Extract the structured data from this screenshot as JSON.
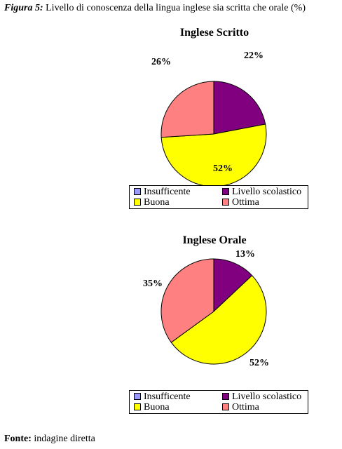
{
  "caption": {
    "label": "Figura 5:",
    "text": "Livello di conoscenza della lingua inglese sia scritta che orale (%)"
  },
  "colors": {
    "Insufficente": "#9999ff",
    "Livello scolastico": "#800080",
    "Buona": "#ffff00",
    "Ottima": "#ff8080"
  },
  "chart_data": [
    {
      "type": "pie",
      "title": "Inglese Scritto",
      "categories": [
        "Insufficente",
        "Livello scolastico",
        "Buona",
        "Ottima"
      ],
      "values": [
        0,
        22,
        52,
        26
      ],
      "labels": [
        "",
        "22%",
        "52%",
        "26%"
      ],
      "legend": [
        "Insufficente",
        "Livello scolastico",
        "Buona",
        "Ottima"
      ]
    },
    {
      "type": "pie",
      "title": "Inglese Orale",
      "categories": [
        "Insufficente",
        "Livello scolastico",
        "Buona",
        "Ottima"
      ],
      "values": [
        0,
        13,
        52,
        35
      ],
      "labels": [
        "",
        "13%",
        "52%",
        "35%"
      ],
      "legend": [
        "Insufficente",
        "Livello scolastico",
        "Buona",
        "Ottima"
      ]
    }
  ],
  "footer": {
    "label": "Fonte:",
    "text": "indagine diretta"
  }
}
